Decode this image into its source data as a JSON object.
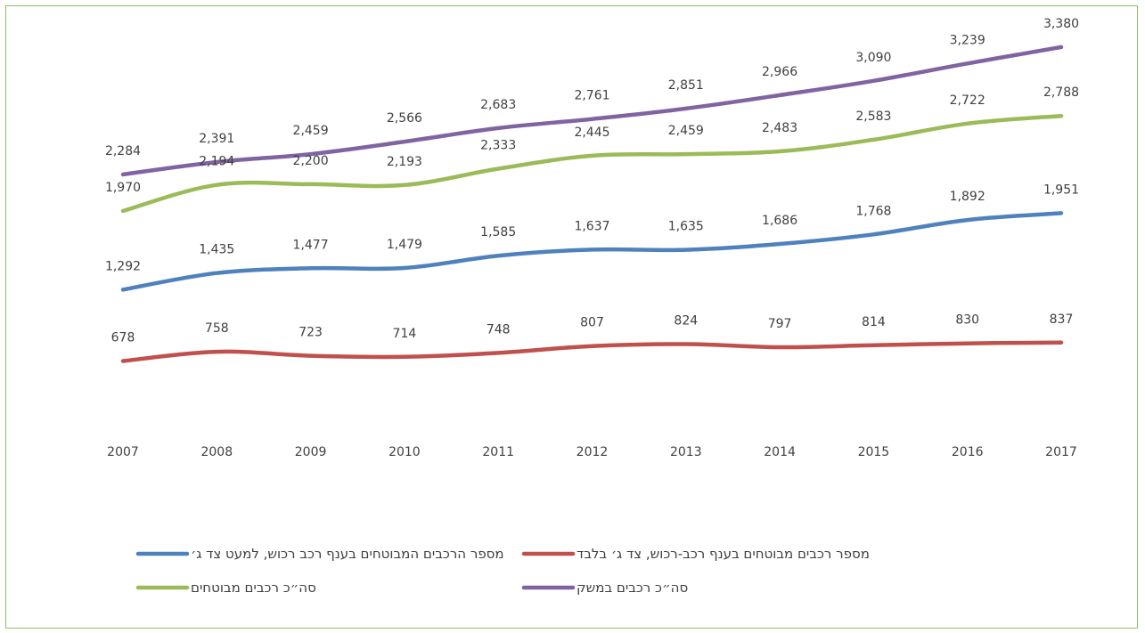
{
  "chart_data": {
    "type": "line",
    "categories": [
      "2007",
      "2008",
      "2009",
      "2010",
      "2011",
      "2012",
      "2013",
      "2014",
      "2015",
      "2016",
      "2017"
    ],
    "ylim": [
      0,
      3500
    ],
    "grid": false,
    "legend_position": "bottom",
    "series": [
      {
        "name": "מספר רכבים מבוטחים בענף רכב-רכוש, צד ג׳ בלבד",
        "color": "#c0504d",
        "values": [
          678,
          758,
          723,
          714,
          748,
          807,
          824,
          797,
          814,
          830,
          837
        ],
        "labels": [
          "678",
          "758",
          "723",
          "714",
          "748",
          "807",
          "824",
          "797",
          "814",
          "830",
          "837"
        ]
      },
      {
        "name": "מספר הרכבים המבוטחים בענף רכב רכוש, למעט צד ג׳",
        "color": "#4f81bd",
        "values": [
          1292,
          1435,
          1477,
          1479,
          1585,
          1637,
          1635,
          1686,
          1768,
          1892,
          1951
        ],
        "labels": [
          "1,292",
          "1,435",
          "1,477",
          "1,479",
          "1,585",
          "1,637",
          "1,635",
          "1,686",
          "1,768",
          "1,892",
          "1,951"
        ]
      },
      {
        "name": "סה״כ רכבים במשק",
        "color": "#8064a2",
        "values": [
          2284,
          2391,
          2459,
          2566,
          2683,
          2761,
          2851,
          2966,
          3090,
          3239,
          3380
        ],
        "labels": [
          "2,284",
          "2,391",
          "2,459",
          "2,566",
          "2,683",
          "2,761",
          "2,851",
          "2,966",
          "3,090",
          "3,239",
          "3,380"
        ]
      },
      {
        "name": "סה״כ רכבים מבוטחים",
        "color": "#9bbb59",
        "values": [
          1970,
          2194,
          2200,
          2193,
          2333,
          2445,
          2459,
          2483,
          2583,
          2722,
          2788
        ],
        "labels": [
          "1,970",
          "2,194",
          "2,200",
          "2,193",
          "2,333",
          "2,445",
          "2,459",
          "2,483",
          "2,583",
          "2,722",
          "2,788"
        ]
      }
    ]
  }
}
